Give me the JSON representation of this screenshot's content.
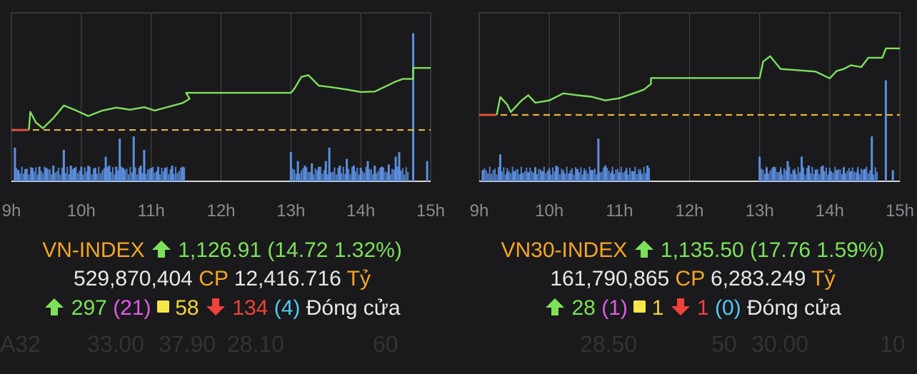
{
  "colors": {
    "price_line": "#7ee15a",
    "volume_bar": "#5b8fe0",
    "reference_line": "#e8b43a",
    "pre_open": "#e0503a",
    "grid": "#4a4a4e",
    "axis_label": "#8a8a8e"
  },
  "ghost_row": [
    "A32",
    "33.00",
    "37.90",
    "28.10",
    "60",
    "28.50",
    "50",
    "30.00",
    "10"
  ],
  "chart_data": [
    {
      "type": "line",
      "index_name": "VN-INDEX",
      "x_ticks": [
        "9h",
        "10h",
        "11h",
        "12h",
        "13h",
        "14h",
        "15h"
      ],
      "reference_value": 1112.19,
      "ylim": [
        1100,
        1140
      ],
      "price_series": [
        [
          9.0,
          1112.2
        ],
        [
          9.25,
          1112.2
        ],
        [
          9.27,
          1116.5
        ],
        [
          9.35,
          1114.0
        ],
        [
          9.45,
          1112.6
        ],
        [
          9.6,
          1115.0
        ],
        [
          9.75,
          1118.0
        ],
        [
          9.9,
          1117.0
        ],
        [
          10.1,
          1115.5
        ],
        [
          10.3,
          1116.8
        ],
        [
          10.5,
          1117.5
        ],
        [
          10.7,
          1117.0
        ],
        [
          10.9,
          1117.6
        ],
        [
          11.05,
          1116.8
        ],
        [
          11.25,
          1117.7
        ],
        [
          11.45,
          1118.6
        ],
        [
          11.55,
          1119.6
        ],
        [
          11.5,
          1121.0
        ],
        [
          13.0,
          1121.0
        ],
        [
          13.05,
          1122.0
        ],
        [
          13.15,
          1124.8
        ],
        [
          13.25,
          1125.2
        ],
        [
          13.4,
          1122.7
        ],
        [
          13.6,
          1122.3
        ],
        [
          13.8,
          1121.8
        ],
        [
          14.0,
          1121.2
        ],
        [
          14.2,
          1121.3
        ],
        [
          14.35,
          1122.5
        ],
        [
          14.5,
          1123.7
        ],
        [
          14.6,
          1124.3
        ],
        [
          14.75,
          1124.3
        ],
        [
          14.75,
          1126.91
        ],
        [
          15.0,
          1126.91
        ]
      ],
      "volume_series": [
        [
          9.05,
          30
        ],
        [
          9.1,
          10
        ],
        [
          9.2,
          11
        ],
        [
          9.3,
          12
        ],
        [
          9.4,
          13
        ],
        [
          9.5,
          12
        ],
        [
          9.6,
          14
        ],
        [
          9.75,
          28
        ],
        [
          9.85,
          14
        ],
        [
          9.9,
          12
        ],
        [
          10.0,
          13
        ],
        [
          10.1,
          14
        ],
        [
          10.2,
          12
        ],
        [
          10.35,
          22
        ],
        [
          10.4,
          14
        ],
        [
          10.5,
          13
        ],
        [
          10.55,
          38
        ],
        [
          10.6,
          12
        ],
        [
          10.75,
          40
        ],
        [
          10.85,
          14
        ],
        [
          10.9,
          28
        ],
        [
          11.0,
          12
        ],
        [
          11.1,
          13
        ],
        [
          11.2,
          12
        ],
        [
          11.3,
          14
        ],
        [
          11.45,
          13
        ],
        [
          13.0,
          26
        ],
        [
          13.1,
          18
        ],
        [
          13.2,
          14
        ],
        [
          13.3,
          16
        ],
        [
          13.4,
          13
        ],
        [
          13.5,
          18
        ],
        [
          13.55,
          30
        ],
        [
          13.7,
          14
        ],
        [
          13.8,
          20
        ],
        [
          13.9,
          14
        ],
        [
          14.0,
          12
        ],
        [
          14.1,
          18
        ],
        [
          14.2,
          14
        ],
        [
          14.3,
          13
        ],
        [
          14.4,
          15
        ],
        [
          14.5,
          22
        ],
        [
          14.55,
          26
        ],
        [
          14.75,
          132
        ],
        [
          14.95,
          18
        ]
      ],
      "value_text": "1,126.91",
      "change_text": "(14.72 1.32%)",
      "volume_text": "529,870,404",
      "cp_label": "CP",
      "turnover_text": "12,416.716",
      "turnover_unit": "Tỷ",
      "advancers": "297",
      "ceiling": "(21)",
      "unchanged": "58",
      "decliners": "134",
      "floor": "(4)",
      "session_status": "Đóng cửa"
    },
    {
      "type": "line",
      "index_name": "VN30-INDEX",
      "x_ticks": [
        "9h",
        "10h",
        "11h",
        "12h",
        "13h",
        "14h",
        "15h"
      ],
      "reference_value": 1117.74,
      "ylim": [
        1100,
        1145
      ],
      "price_series": [
        [
          9.0,
          1117.74
        ],
        [
          9.25,
          1117.74
        ],
        [
          9.3,
          1122.5
        ],
        [
          9.4,
          1120.5
        ],
        [
          9.45,
          1118.5
        ],
        [
          9.6,
          1121.5
        ],
        [
          9.7,
          1123.0
        ],
        [
          9.8,
          1121.0
        ],
        [
          10.0,
          1121.6
        ],
        [
          10.2,
          1123.5
        ],
        [
          10.4,
          1123.0
        ],
        [
          10.6,
          1122.6
        ],
        [
          10.8,
          1121.6
        ],
        [
          11.0,
          1122.2
        ],
        [
          11.2,
          1123.5
        ],
        [
          11.35,
          1124.5
        ],
        [
          11.45,
          1126.0
        ],
        [
          11.45,
          1127.6
        ],
        [
          13.0,
          1127.6
        ],
        [
          13.05,
          1132.0
        ],
        [
          13.15,
          1133.4
        ],
        [
          13.3,
          1130.0
        ],
        [
          13.45,
          1129.8
        ],
        [
          13.6,
          1129.6
        ],
        [
          13.8,
          1129.3
        ],
        [
          14.0,
          1127.5
        ],
        [
          14.1,
          1129.5
        ],
        [
          14.2,
          1130.0
        ],
        [
          14.3,
          1131.0
        ],
        [
          14.45,
          1130.5
        ],
        [
          14.55,
          1133.0
        ],
        [
          14.75,
          1133.0
        ],
        [
          14.8,
          1135.5
        ],
        [
          15.0,
          1135.5
        ]
      ],
      "volume_series": [
        [
          9.05,
          10
        ],
        [
          9.3,
          24
        ],
        [
          9.4,
          8
        ],
        [
          9.5,
          9
        ],
        [
          9.6,
          7
        ],
        [
          9.7,
          8
        ],
        [
          9.8,
          12
        ],
        [
          9.9,
          9
        ],
        [
          10.0,
          10
        ],
        [
          10.1,
          14
        ],
        [
          10.2,
          8
        ],
        [
          10.3,
          7
        ],
        [
          10.4,
          11
        ],
        [
          10.5,
          9
        ],
        [
          10.6,
          10
        ],
        [
          10.7,
          38
        ],
        [
          10.8,
          14
        ],
        [
          10.9,
          9
        ],
        [
          11.0,
          8
        ],
        [
          11.1,
          10
        ],
        [
          11.2,
          9
        ],
        [
          11.3,
          8
        ],
        [
          11.4,
          14
        ],
        [
          13.0,
          22
        ],
        [
          13.1,
          12
        ],
        [
          13.2,
          13
        ],
        [
          13.3,
          10
        ],
        [
          13.4,
          18
        ],
        [
          13.5,
          9
        ],
        [
          13.6,
          22
        ],
        [
          13.7,
          14
        ],
        [
          13.8,
          10
        ],
        [
          13.9,
          14
        ],
        [
          14.0,
          9
        ],
        [
          14.1,
          10
        ],
        [
          14.2,
          12
        ],
        [
          14.3,
          9
        ],
        [
          14.4,
          10
        ],
        [
          14.5,
          11
        ],
        [
          14.6,
          40
        ],
        [
          14.8,
          90
        ],
        [
          14.9,
          10
        ]
      ],
      "value_text": "1,135.50",
      "change_text": "(17.76 1.59%)",
      "volume_text": "161,790,865",
      "cp_label": "CP",
      "turnover_text": "6,283.249",
      "turnover_unit": "Tỷ",
      "advancers": "28",
      "ceiling": "(1)",
      "unchanged": "1",
      "decliners": "1",
      "floor": "(0)",
      "session_status": "Đóng cửa"
    }
  ]
}
